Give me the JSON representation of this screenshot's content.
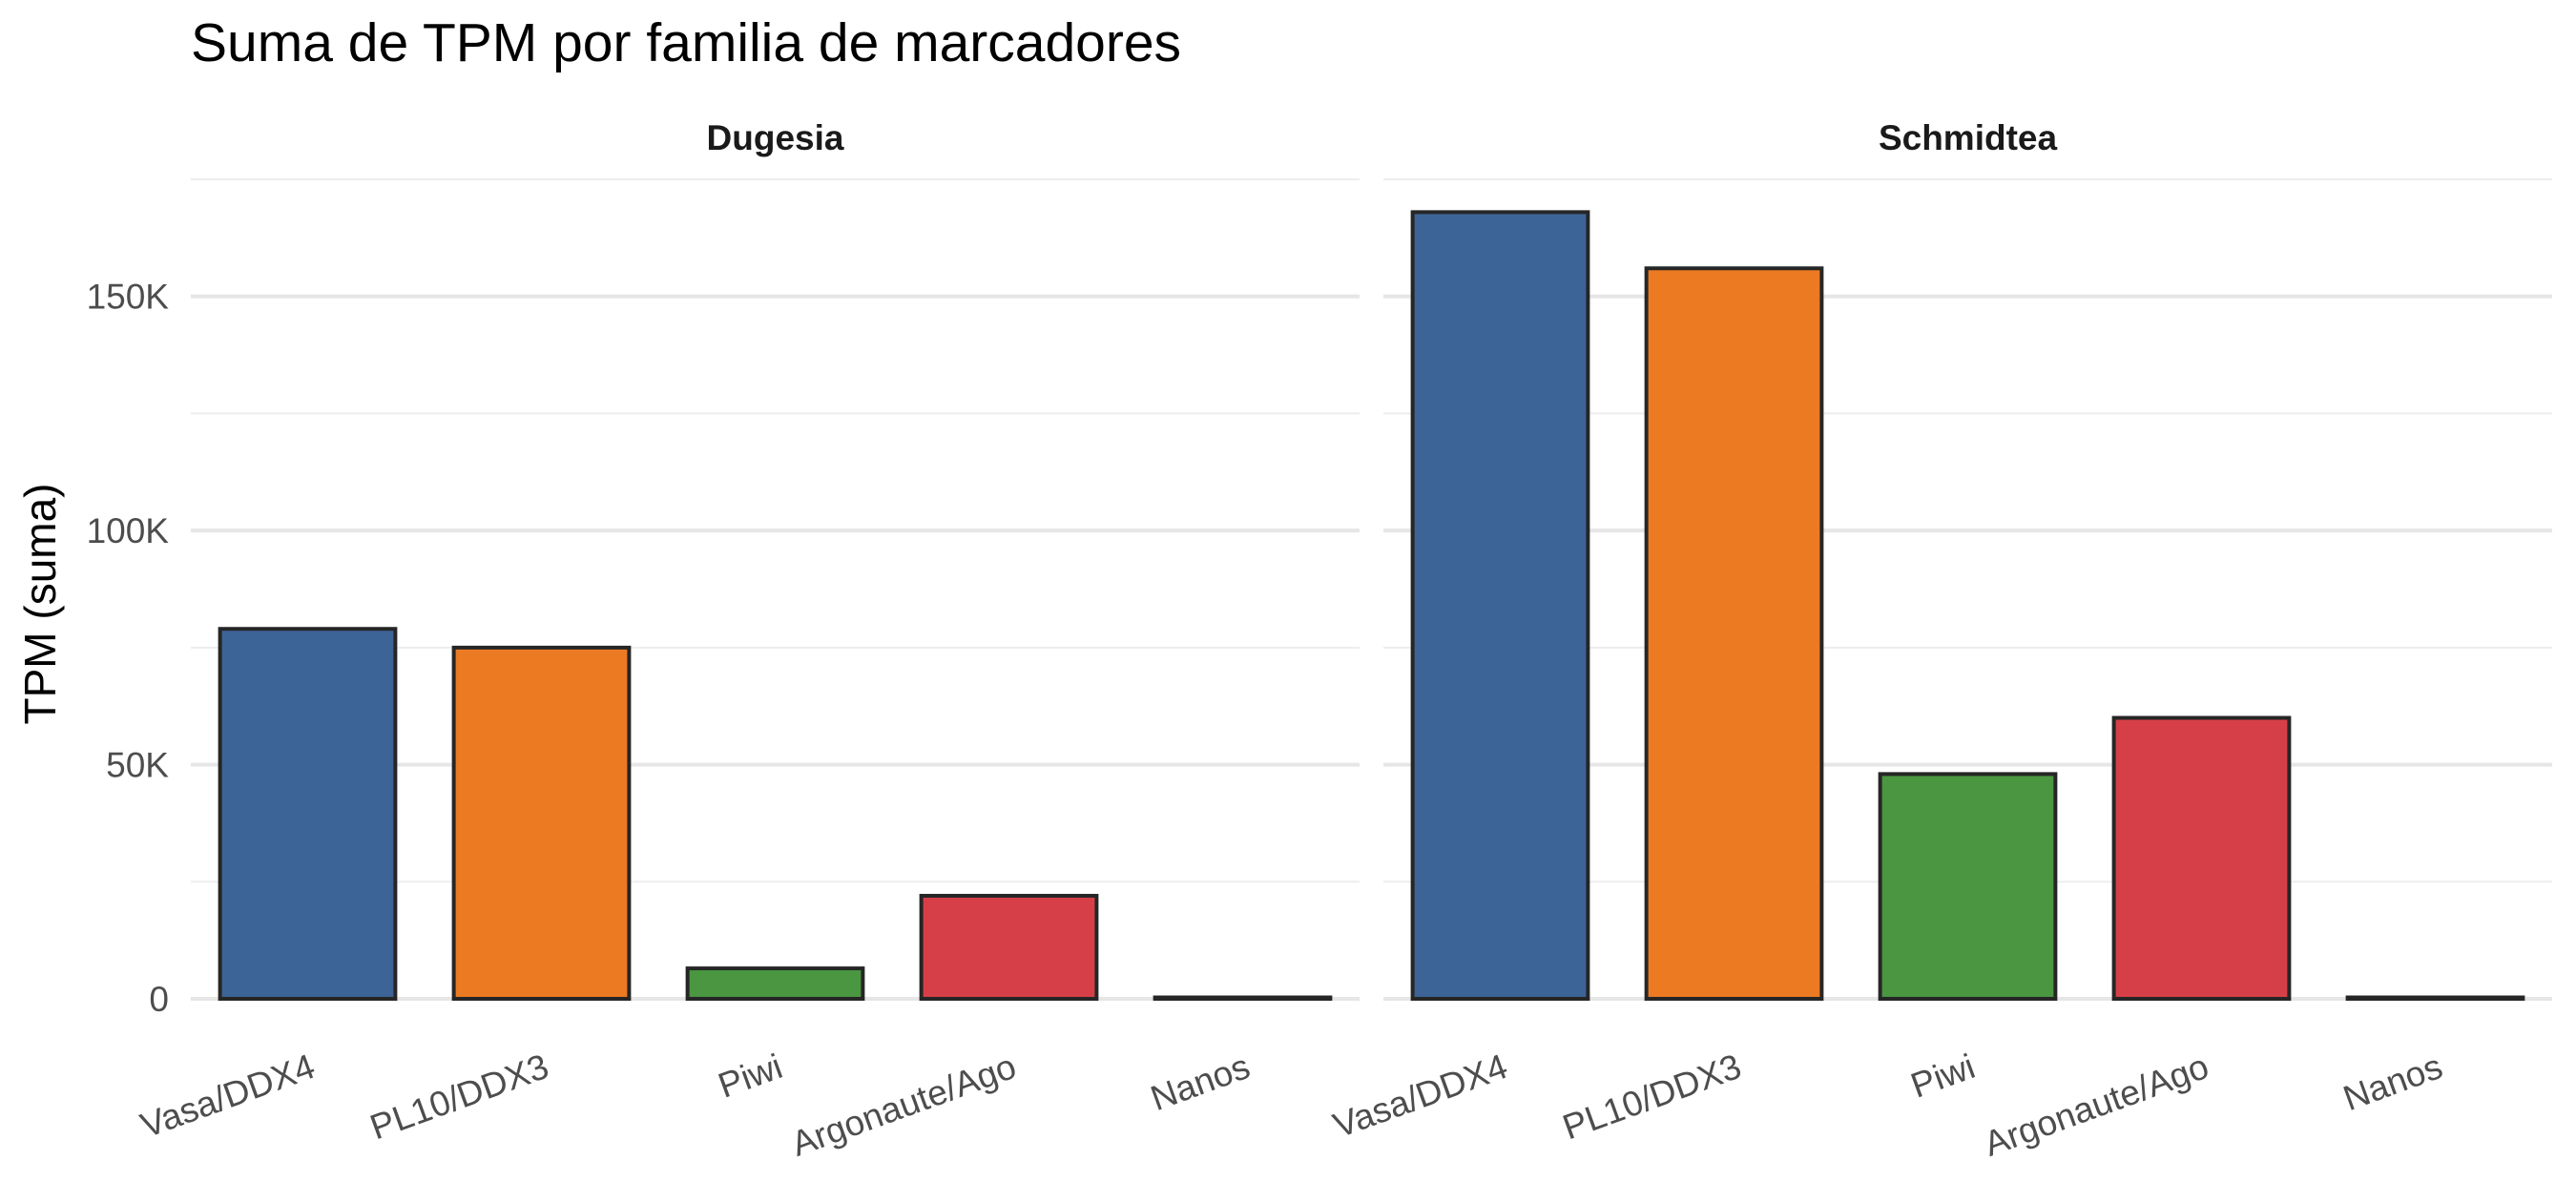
{
  "chart_data": {
    "type": "bar",
    "title": "Suma de TPM por familia de marcadores",
    "xlabel": "",
    "ylabel": "TPM (suma)",
    "ylim": [
      0,
      175000
    ],
    "yticks": [
      0,
      50000,
      100000,
      150000
    ],
    "ytick_labels": [
      "0",
      "50K",
      "100K",
      "150K"
    ],
    "categories": [
      "Vasa/DDX4",
      "PL10/DDX3",
      "Piwi",
      "Argonaute/Ago",
      "Nanos"
    ],
    "colors": [
      "#3d6496",
      "#ec7a22",
      "#4a9641",
      "#d73f48",
      "#262626"
    ],
    "grid": true,
    "legend": "none",
    "facets": [
      {
        "name": "Dugesia",
        "values": [
          79000,
          75000,
          6500,
          22000,
          300
        ]
      },
      {
        "name": "Schmidtea",
        "values": [
          168000,
          156000,
          48000,
          60000,
          300
        ]
      }
    ]
  }
}
